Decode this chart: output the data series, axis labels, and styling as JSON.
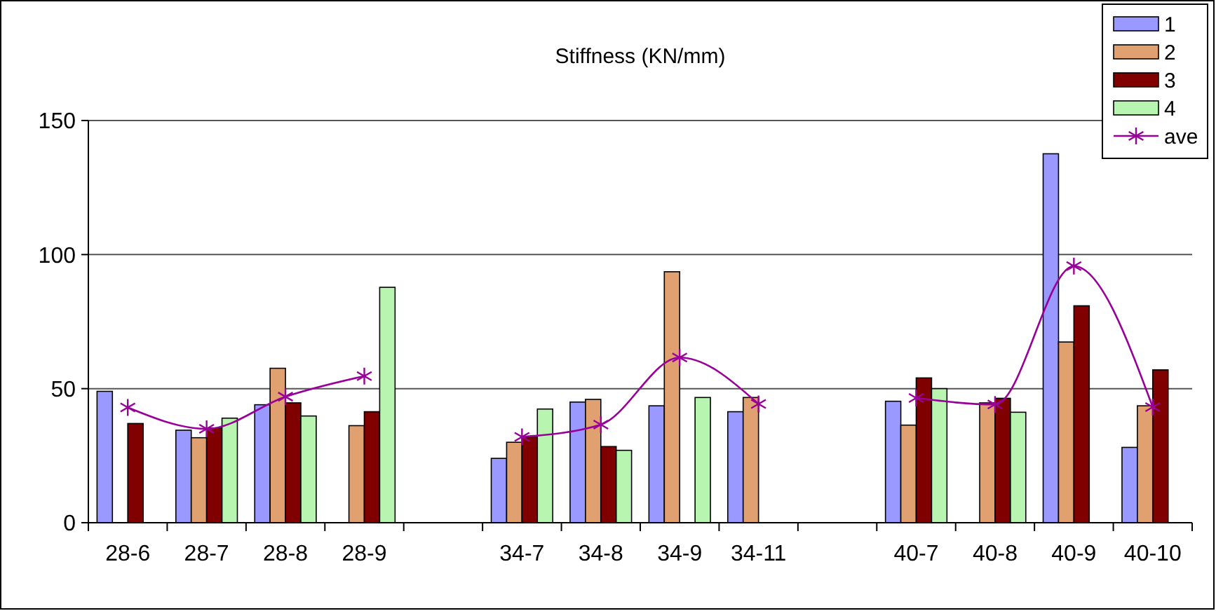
{
  "chart_data": {
    "type": "bar",
    "title": "Stiffness (KN/mm)",
    "categories": [
      "28-6",
      "28-7",
      "28-8",
      "28-9",
      null,
      "34-7",
      "34-8",
      "34-9",
      "34-11",
      null,
      "40-7",
      "40-8",
      "40-9",
      "40-10"
    ],
    "series": [
      {
        "name": "1",
        "color": "#9999ff",
        "values": [
          49,
          34.5,
          44,
          null,
          null,
          24,
          45,
          43.6,
          41.4,
          null,
          45.3,
          null,
          137.6,
          28.1
        ]
      },
      {
        "name": "2",
        "color": "#e0a070",
        "values": [
          null,
          31.7,
          57.6,
          36.2,
          null,
          30,
          46,
          93.6,
          46.7,
          null,
          36.4,
          44.7,
          67.4,
          43.6
        ]
      },
      {
        "name": "3",
        "color": "#800000",
        "values": [
          37,
          35.3,
          44.7,
          41.4,
          null,
          32,
          28.4,
          null,
          null,
          null,
          54,
          46.4,
          80.9,
          57
        ]
      },
      {
        "name": "4",
        "color": "#b8f5b0",
        "values": [
          null,
          39,
          39.8,
          87.8,
          null,
          42.4,
          27,
          46.7,
          null,
          null,
          50,
          41.2,
          null,
          null
        ]
      },
      {
        "name": "ave",
        "type": "line",
        "color": "#990099",
        "marker": "cross",
        "values": [
          43,
          35,
          47,
          54.7,
          null,
          32,
          36.6,
          61.6,
          44.3,
          null,
          46.5,
          44.1,
          95.7,
          43.1
        ]
      }
    ],
    "ylim": [
      0,
      150
    ],
    "yticks": [
      0,
      50,
      100,
      150
    ],
    "grid": "y",
    "legend": "top right"
  }
}
